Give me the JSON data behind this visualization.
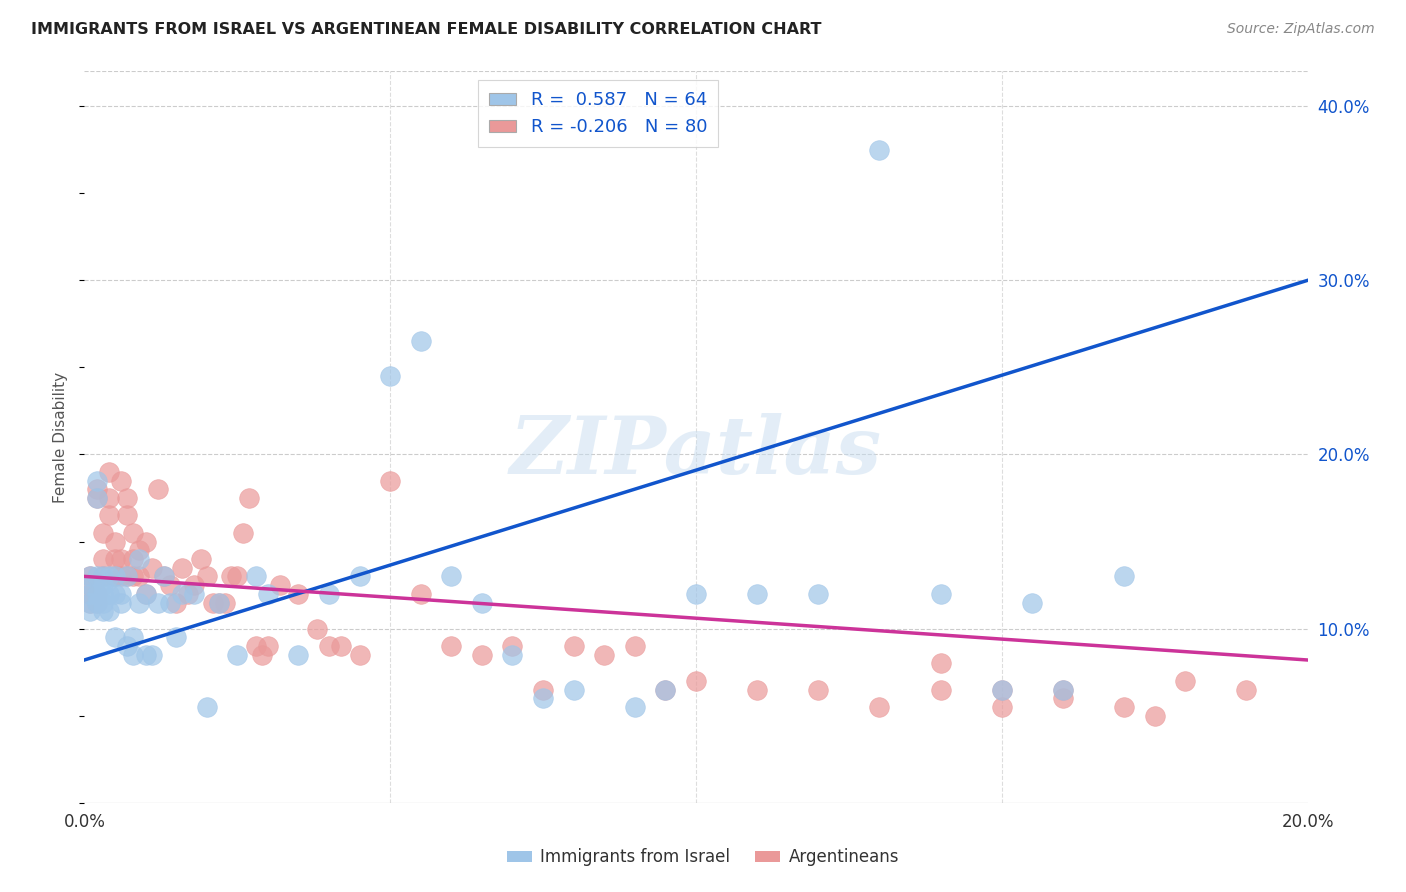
{
  "title": "IMMIGRANTS FROM ISRAEL VS ARGENTINEAN FEMALE DISABILITY CORRELATION CHART",
  "source": "Source: ZipAtlas.com",
  "ylabel_label": "Female Disability",
  "xlim": [
    0.0,
    0.2
  ],
  "ylim": [
    0.0,
    0.42
  ],
  "x_tick_positions": [
    0.0,
    0.05,
    0.1,
    0.15,
    0.2
  ],
  "x_tick_labels": [
    "0.0%",
    "",
    "",
    "",
    "20.0%"
  ],
  "y_ticks_right": [
    0.1,
    0.2,
    0.3,
    0.4
  ],
  "y_tick_labels_right": [
    "10.0%",
    "20.0%",
    "30.0%",
    "40.0%"
  ],
  "blue_color": "#9fc5e8",
  "pink_color": "#ea9999",
  "line_blue": "#1155cc",
  "line_pink": "#cc3399",
  "R_blue": 0.587,
  "N_blue": 64,
  "R_pink": -0.206,
  "N_pink": 80,
  "watermark": "ZIPatlas",
  "legend_label_blue": "Immigrants from Israel",
  "legend_label_pink": "Argentineans",
  "blue_line_y0": 0.082,
  "blue_line_y1": 0.3,
  "pink_line_y0": 0.13,
  "pink_line_y1": 0.082,
  "blue_scatter_x": [
    0.001,
    0.001,
    0.001,
    0.001,
    0.001,
    0.002,
    0.002,
    0.002,
    0.002,
    0.002,
    0.003,
    0.003,
    0.003,
    0.003,
    0.003,
    0.004,
    0.004,
    0.004,
    0.005,
    0.005,
    0.005,
    0.006,
    0.006,
    0.007,
    0.007,
    0.008,
    0.008,
    0.009,
    0.009,
    0.01,
    0.01,
    0.011,
    0.012,
    0.013,
    0.014,
    0.015,
    0.016,
    0.018,
    0.02,
    0.022,
    0.025,
    0.028,
    0.03,
    0.035,
    0.04,
    0.045,
    0.05,
    0.055,
    0.06,
    0.065,
    0.07,
    0.075,
    0.08,
    0.09,
    0.095,
    0.1,
    0.11,
    0.12,
    0.13,
    0.14,
    0.15,
    0.16,
    0.17,
    0.155
  ],
  "blue_scatter_y": [
    0.13,
    0.12,
    0.115,
    0.11,
    0.125,
    0.185,
    0.175,
    0.13,
    0.12,
    0.115,
    0.12,
    0.11,
    0.115,
    0.13,
    0.125,
    0.12,
    0.13,
    0.11,
    0.095,
    0.12,
    0.13,
    0.12,
    0.115,
    0.09,
    0.13,
    0.095,
    0.085,
    0.14,
    0.115,
    0.12,
    0.085,
    0.085,
    0.115,
    0.13,
    0.115,
    0.095,
    0.12,
    0.12,
    0.055,
    0.115,
    0.085,
    0.13,
    0.12,
    0.085,
    0.12,
    0.13,
    0.245,
    0.265,
    0.13,
    0.115,
    0.085,
    0.06,
    0.065,
    0.055,
    0.065,
    0.12,
    0.12,
    0.12,
    0.375,
    0.12,
    0.065,
    0.065,
    0.13,
    0.115
  ],
  "pink_scatter_x": [
    0.001,
    0.001,
    0.001,
    0.001,
    0.002,
    0.002,
    0.002,
    0.002,
    0.003,
    0.003,
    0.003,
    0.004,
    0.004,
    0.004,
    0.005,
    0.005,
    0.005,
    0.006,
    0.006,
    0.006,
    0.007,
    0.007,
    0.007,
    0.008,
    0.008,
    0.008,
    0.009,
    0.009,
    0.01,
    0.01,
    0.011,
    0.012,
    0.013,
    0.014,
    0.015,
    0.016,
    0.017,
    0.018,
    0.019,
    0.02,
    0.021,
    0.022,
    0.023,
    0.024,
    0.025,
    0.026,
    0.027,
    0.028,
    0.029,
    0.03,
    0.032,
    0.035,
    0.038,
    0.04,
    0.042,
    0.045,
    0.05,
    0.055,
    0.06,
    0.065,
    0.07,
    0.075,
    0.08,
    0.085,
    0.09,
    0.095,
    0.1,
    0.11,
    0.12,
    0.13,
    0.14,
    0.15,
    0.16,
    0.17,
    0.175,
    0.18,
    0.19,
    0.14,
    0.15,
    0.16
  ],
  "pink_scatter_y": [
    0.13,
    0.12,
    0.115,
    0.125,
    0.18,
    0.175,
    0.12,
    0.115,
    0.155,
    0.14,
    0.13,
    0.19,
    0.175,
    0.165,
    0.15,
    0.14,
    0.13,
    0.185,
    0.14,
    0.13,
    0.175,
    0.165,
    0.13,
    0.155,
    0.14,
    0.13,
    0.145,
    0.13,
    0.15,
    0.12,
    0.135,
    0.18,
    0.13,
    0.125,
    0.115,
    0.135,
    0.12,
    0.125,
    0.14,
    0.13,
    0.115,
    0.115,
    0.115,
    0.13,
    0.13,
    0.155,
    0.175,
    0.09,
    0.085,
    0.09,
    0.125,
    0.12,
    0.1,
    0.09,
    0.09,
    0.085,
    0.185,
    0.12,
    0.09,
    0.085,
    0.09,
    0.065,
    0.09,
    0.085,
    0.09,
    0.065,
    0.07,
    0.065,
    0.065,
    0.055,
    0.065,
    0.055,
    0.06,
    0.055,
    0.05,
    0.07,
    0.065,
    0.08,
    0.065,
    0.065
  ]
}
